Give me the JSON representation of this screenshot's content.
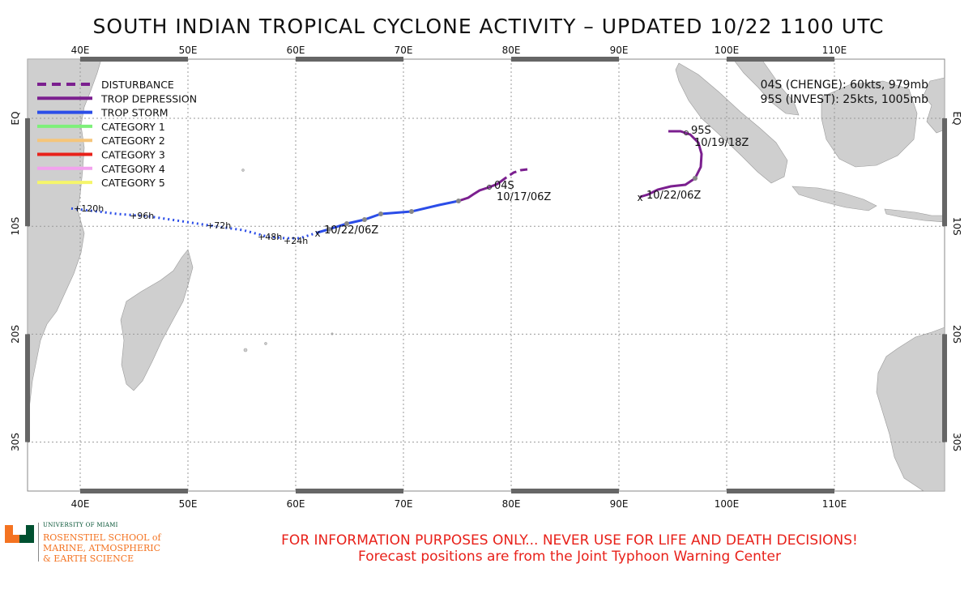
{
  "title": "SOUTH INDIAN TROPICAL CYCLONE ACTIVITY – UPDATED 10/22 1100 UTC",
  "axes": {
    "lon_labels": [
      "40E",
      "50E",
      "60E",
      "70E",
      "80E",
      "90E",
      "100E",
      "110E"
    ],
    "lat_labels": [
      "EQ",
      "10S",
      "20S",
      "30S"
    ]
  },
  "legend": [
    {
      "label": "DISTURBANCE",
      "color": "#7b1f8f",
      "style": "dashed"
    },
    {
      "label": "TROP DEPRESSION",
      "color": "#7b1f8f",
      "style": "solid"
    },
    {
      "label": "TROP STORM",
      "color": "#2b4de8",
      "style": "solid"
    },
    {
      "label": "CATEGORY 1",
      "color": "#7ef07a",
      "style": "solid"
    },
    {
      "label": "CATEGORY 2",
      "color": "#f5c57a",
      "style": "solid"
    },
    {
      "label": "CATEGORY 3",
      "color": "#e8211a",
      "style": "solid"
    },
    {
      "label": "CATEGORY 4",
      "color": "#f2a2ee",
      "style": "solid"
    },
    {
      "label": "CATEGORY 5",
      "color": "#f5f56a",
      "style": "solid"
    }
  ],
  "storm_info": {
    "line1": "04S (CHENGE): 60kts, 979mb",
    "line2": "95S (INVEST): 25kts, 1005mb"
  },
  "storms": {
    "s04": {
      "label": "04S",
      "start_label": "10/17/06Z",
      "current_label": "10/22/06Z",
      "forecast_labels": [
        "+24h",
        "+48h",
        "+72h",
        "+96h",
        "+120h"
      ]
    },
    "s95": {
      "label": "95S",
      "start_label": "10/19/18Z",
      "current_label": "10/22/06Z"
    }
  },
  "footer": {
    "university": "UNIVERSITY OF MIAMI",
    "school_line1": "ROSENSTIEL SCHOOL of",
    "school_line2": "MARINE, ATMOSPHERIC",
    "school_line3": "& EARTH SCIENCE",
    "disclaimer1": "FOR INFORMATION PURPOSES ONLY... NEVER USE FOR LIFE AND DEATH DECISIONS!",
    "disclaimer2": "Forecast positions are from the Joint Typhoon Warning Center"
  },
  "colors": {
    "land": "#cfcfcf",
    "trop_storm": "#2b4de8",
    "trop_depression": "#7b1f8f",
    "disclaimer": "#e8211a",
    "logo_orange": "#f47321",
    "logo_green": "#005030"
  }
}
